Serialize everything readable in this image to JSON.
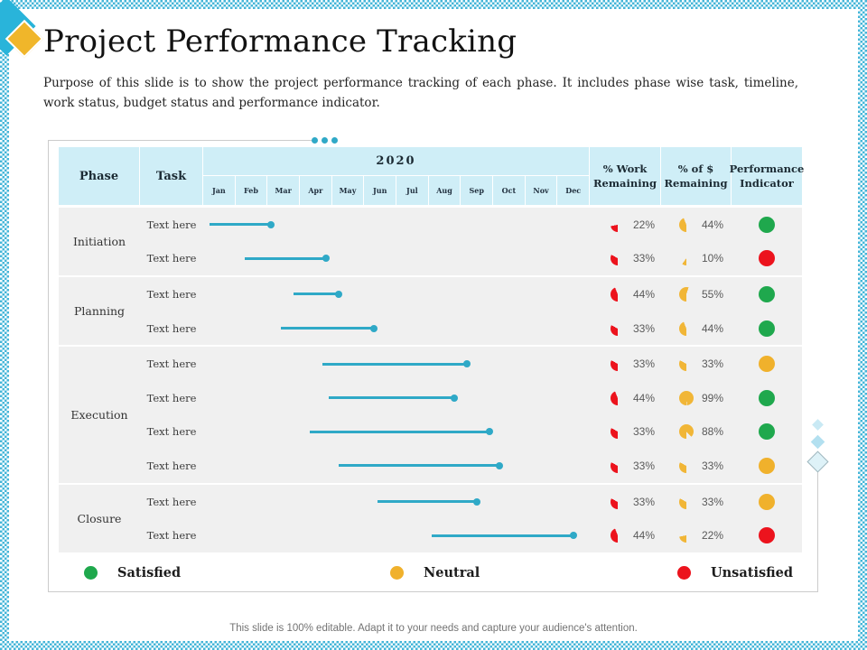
{
  "slide": {
    "title": "Project Performance Tracking",
    "subtitle": "Purpose of this slide is to show the project performance tracking of each phase. It includes phase wise task, timeline, work status, budget status and performance indicator.",
    "footer": "This slide is 100% editable. Adapt it to your needs and capture your audience's attention."
  },
  "table": {
    "headers": {
      "phase": "Phase",
      "task": "Task",
      "year": "2020",
      "work_remaining": "% Work Remaining",
      "dollar_remaining": "% of $ Remaining",
      "performance_indicator": "Performance Indicator"
    },
    "months": [
      "Jan",
      "Feb",
      "Mar",
      "Apr",
      "May",
      "Jun",
      "Jul",
      "Aug",
      "Sep",
      "Oct",
      "Nov",
      "Dec"
    ],
    "groups": [
      {
        "phase": "Initiation",
        "tasks": [
          {
            "label": "Text here",
            "timeline": {
              "start_month": 0.2,
              "end_month": 2.1
            },
            "work_remaining": "22%",
            "dollar_remaining": "44%",
            "indicator": "satisfied"
          },
          {
            "label": "Text here",
            "timeline": {
              "start_month": 1.3,
              "end_month": 3.8
            },
            "work_remaining": "33%",
            "dollar_remaining": "10%",
            "indicator": "unsatisfied"
          }
        ]
      },
      {
        "phase": "Planning",
        "tasks": [
          {
            "label": "Text here",
            "timeline": {
              "start_month": 2.8,
              "end_month": 4.2
            },
            "work_remaining": "44%",
            "dollar_remaining": "55%",
            "indicator": "satisfied"
          },
          {
            "label": "Text here",
            "timeline": {
              "start_month": 2.4,
              "end_month": 5.3
            },
            "work_remaining": "33%",
            "dollar_remaining": "44%",
            "indicator": "satisfied"
          }
        ]
      },
      {
        "phase": "Execution",
        "tasks": [
          {
            "label": "Text here",
            "timeline": {
              "start_month": 3.7,
              "end_month": 8.2
            },
            "work_remaining": "33%",
            "dollar_remaining": "33%",
            "indicator": "neutral"
          },
          {
            "label": "Text here",
            "timeline": {
              "start_month": 3.9,
              "end_month": 7.8
            },
            "work_remaining": "44%",
            "dollar_remaining": "99%",
            "indicator": "satisfied"
          },
          {
            "label": "Text here",
            "timeline": {
              "start_month": 3.3,
              "end_month": 8.9
            },
            "work_remaining": "33%",
            "dollar_remaining": "88%",
            "indicator": "satisfied"
          },
          {
            "label": "Text here",
            "timeline": {
              "start_month": 4.2,
              "end_month": 9.2
            },
            "work_remaining": "33%",
            "dollar_remaining": "33%",
            "indicator": "neutral"
          }
        ]
      },
      {
        "phase": "Closure",
        "tasks": [
          {
            "label": "Text here",
            "timeline": {
              "start_month": 5.4,
              "end_month": 8.5
            },
            "work_remaining": "33%",
            "dollar_remaining": "33%",
            "indicator": "neutral"
          },
          {
            "label": "Text here",
            "timeline": {
              "start_month": 7.1,
              "end_month": 11.5
            },
            "work_remaining": "44%",
            "dollar_remaining": "22%",
            "indicator": "unsatisfied"
          }
        ]
      }
    ]
  },
  "legend": {
    "items": [
      {
        "status": "satisfied",
        "label": "Satisfied",
        "color": "#1fa84d"
      },
      {
        "status": "neutral",
        "label": "Neutral",
        "color": "#f0b12c"
      },
      {
        "status": "unsatisfied",
        "label": "Unsatisfied",
        "color": "#ec131d"
      }
    ]
  },
  "colors": {
    "accent_teal": "#2fa9c7",
    "header_bg": "#cfeef7",
    "row_bg": "#f0f0f0",
    "work_pie": "#ec131d",
    "dollar_pie": "#f1b637",
    "border_cyan": "#45b6d8",
    "diamond_cyan": "#29b4da",
    "diamond_yellow": "#f0b62a"
  }
}
